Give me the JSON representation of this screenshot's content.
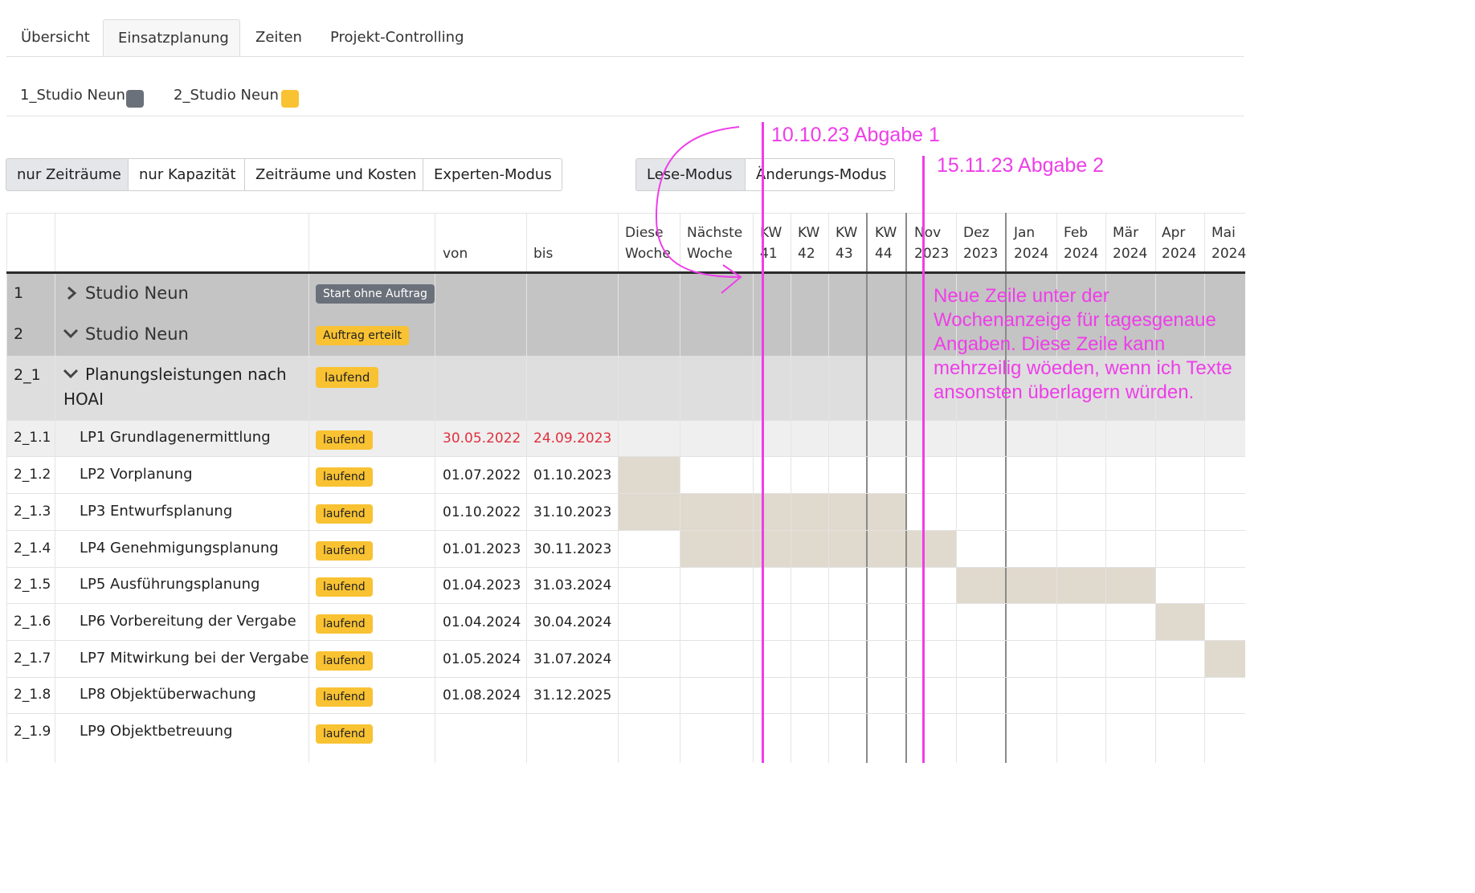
{
  "tabs": [
    {
      "label": "Übersicht"
    },
    {
      "label": "Einsatzplanung"
    },
    {
      "label": "Zeiten"
    },
    {
      "label": "Projekt-Controlling"
    }
  ],
  "legend": [
    {
      "label": "1_Studio Neun",
      "color": "#6b717a"
    },
    {
      "label": "2_Studio Neun",
      "color": "#f9c232"
    }
  ],
  "view_modes": [
    "nur Zeiträume",
    "nur Kapazität",
    "Zeiträume und Kosten",
    "Experten-Modus"
  ],
  "edit_modes": [
    "Lese-Modus",
    "Änderungs-Modus"
  ],
  "columns": {
    "from": "von",
    "to": "bis",
    "timeline": [
      {
        "l1": "Diese",
        "l2": "Woche"
      },
      {
        "l1": "Nächste",
        "l2": "Woche"
      },
      {
        "l1": "KW",
        "l2": "41"
      },
      {
        "l1": "KW",
        "l2": "42"
      },
      {
        "l1": "KW",
        "l2": "43"
      },
      {
        "l1": "KW",
        "l2": "44"
      },
      {
        "l1": "Nov",
        "l2": "2023"
      },
      {
        "l1": "Dez",
        "l2": "2023"
      },
      {
        "l1": "Jan",
        "l2": "2024"
      },
      {
        "l1": "Feb",
        "l2": "2024"
      },
      {
        "l1": "Mär",
        "l2": "2024"
      },
      {
        "l1": "Apr",
        "l2": "2024"
      },
      {
        "l1": "Mai",
        "l2": "2024"
      }
    ]
  },
  "rows": [
    {
      "num": "1",
      "name": "Studio Neun",
      "status": "Start ohne Auftrag",
      "from": "",
      "to": "",
      "chevron": "chevron-right-icon"
    },
    {
      "num": "2",
      "name": "Studio Neun",
      "status": "Auftrag erteilt",
      "from": "",
      "to": "",
      "chevron": "chevron-down-icon"
    },
    {
      "num": "2_1",
      "name": "Planungsleistungen nach",
      "name2": "HOAI",
      "status": "laufend",
      "from": "",
      "to": "",
      "chevron": "chevron-down-icon"
    },
    {
      "num": "2_1.1",
      "name": "LP1 Grundlagenermittlung",
      "status": "laufend",
      "from": "30.05.2022",
      "to": "24.09.2023"
    },
    {
      "num": "2_1.2",
      "name": "LP2 Vorplanung",
      "status": "laufend",
      "from": "01.07.2022",
      "to": "01.10.2023"
    },
    {
      "num": "2_1.3",
      "name": "LP3 Entwurfsplanung",
      "status": "laufend",
      "from": "01.10.2022",
      "to": "31.10.2023"
    },
    {
      "num": "2_1.4",
      "name": "LP4 Genehmigungsplanung",
      "status": "laufend",
      "from": "01.01.2023",
      "to": "30.11.2023"
    },
    {
      "num": "2_1.5",
      "name": "LP5 Ausführungsplanung",
      "status": "laufend",
      "from": "01.04.2023",
      "to": "31.03.2024"
    },
    {
      "num": "2_1.6",
      "name": "LP6 Vorbereitung der Vergabe",
      "status": "laufend",
      "from": "01.04.2024",
      "to": "30.04.2024"
    },
    {
      "num": "2_1.7",
      "name": "LP7 Mitwirkung bei der Vergabe",
      "status": "laufend",
      "from": "01.05.2024",
      "to": "31.07.2024"
    },
    {
      "num": "2_1.8",
      "name": "LP8 Objektüberwachung",
      "status": "laufend",
      "from": "01.08.2024",
      "to": "31.12.2025"
    },
    {
      "num": "2_1.9",
      "name": "LP9 Objektbetreuung",
      "status": "laufend",
      "from": "",
      "to": ""
    }
  ],
  "annotations": {
    "deadline1": "10.10.23 Abgabe 1",
    "deadline2": "15.11.23 Abgabe 2",
    "note": [
      "Neue Zeile unter der",
      "Wochenanzeige für tagesgenaue",
      "Angaben. Diese Zeile kann",
      "mehrzeilig wöeden, wenn ich Texte",
      "ansonsten überlagern würden."
    ]
  },
  "colors": {
    "annotation": "#ee3ee8",
    "bar": "#e0d9cd",
    "group_row": "#c4c4c4",
    "subgroup_row": "#dedede",
    "overdue_date": "#e0303e"
  }
}
